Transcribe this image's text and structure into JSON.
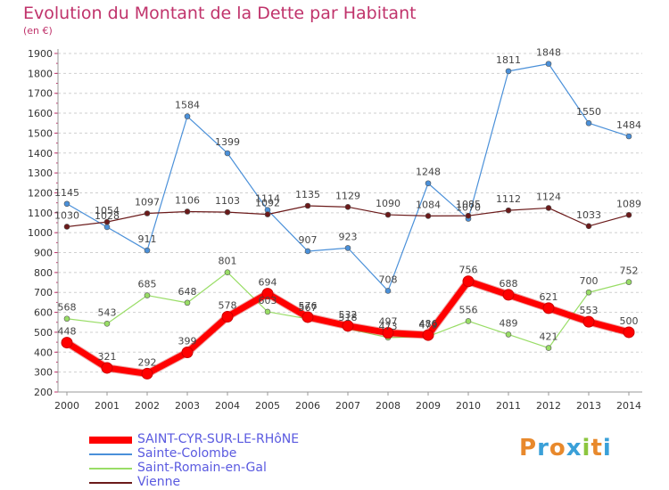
{
  "header": {
    "title": "Evolution du Montant de la Dette par Habitant",
    "subtitle": "(en €)"
  },
  "chart_data": {
    "type": "line",
    "title": "Evolution du Montant de la Dette par Habitant",
    "subtitle": "(en €)",
    "x": [
      2000,
      2001,
      2002,
      2003,
      2004,
      2005,
      2006,
      2007,
      2008,
      2009,
      2010,
      2011,
      2012,
      2013,
      2014
    ],
    "ylim": [
      200,
      1900
    ],
    "y_ticks": [
      200,
      300,
      400,
      500,
      600,
      700,
      800,
      900,
      1000,
      1100,
      1200,
      1300,
      1400,
      1500,
      1600,
      1700,
      1800,
      1900
    ],
    "grid": "horizontal dashed",
    "legend": "bottom-left",
    "series": [
      {
        "name": "SAINT-CYR-SUR-LE-RHôNE",
        "color": "#ff0000",
        "values": [
          448,
          321,
          292,
          399,
          578,
          694,
          576,
          532,
          497,
          486,
          756,
          688,
          621,
          553,
          500
        ]
      },
      {
        "name": "Sainte-Colombe",
        "color": "#4a90d9",
        "values": [
          1145,
          1028,
          911,
          1584,
          1399,
          1114,
          907,
          923,
          708,
          1248,
          1070,
          1811,
          1848,
          1550,
          1484
        ]
      },
      {
        "name": "Saint-Romain-en-Gal",
        "color": "#99dd66",
        "values": [
          568,
          543,
          685,
          648,
          801,
          603,
          567,
          518,
          473,
          479,
          556,
          489,
          421,
          700,
          752
        ]
      },
      {
        "name": "Vienne",
        "color": "#6b1a1a",
        "values": [
          1030,
          1054,
          1097,
          1106,
          1103,
          1092,
          1135,
          1129,
          1090,
          1084,
          1085,
          1112,
          1124,
          1033,
          1089
        ]
      }
    ]
  },
  "logo": {
    "letters": [
      "P",
      "r",
      "o",
      "x",
      "i",
      "t",
      "i"
    ],
    "colors": [
      "#e8892c",
      "#3aa0d8",
      "#e8892c",
      "#3aa0d8",
      "#8cc63f",
      "#e8892c",
      "#3aa0d8"
    ]
  }
}
